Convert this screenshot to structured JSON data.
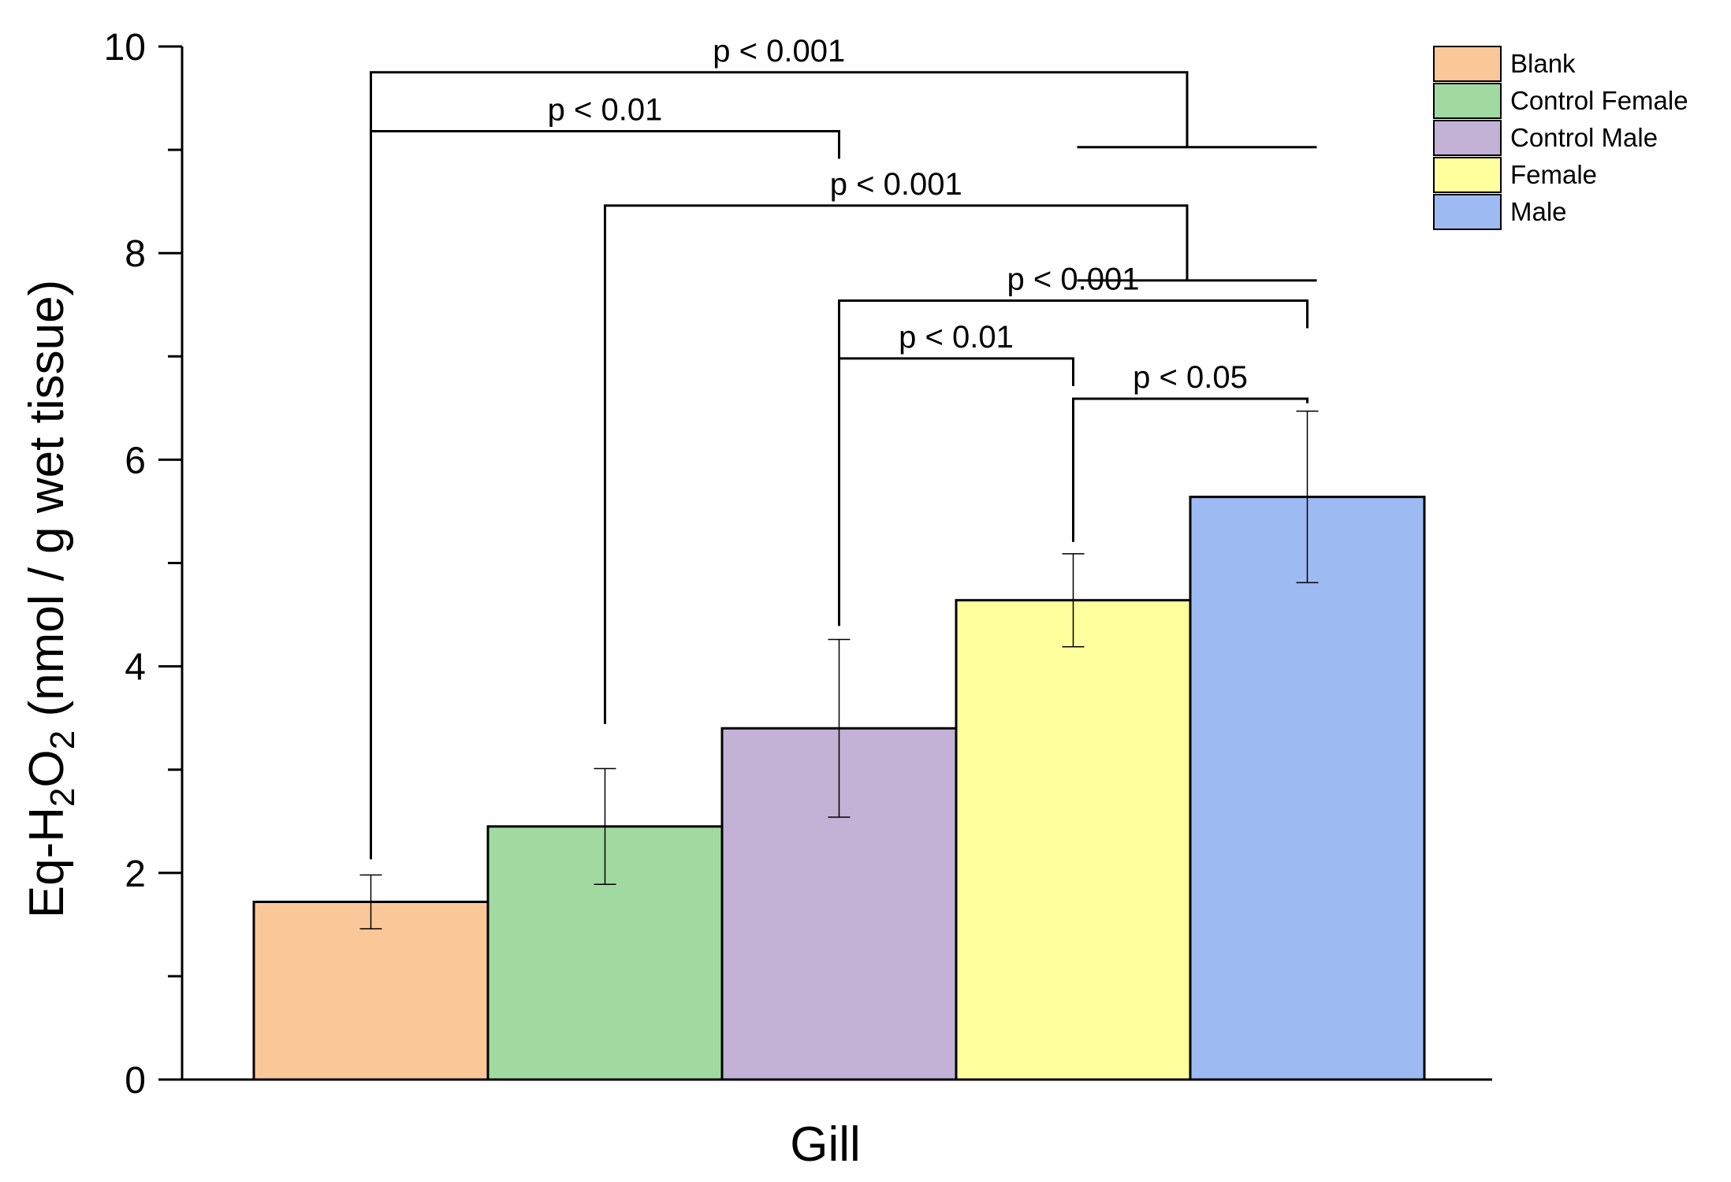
{
  "chart_data": {
    "type": "bar",
    "title": "",
    "xlabel": "Gill",
    "ylabel": {
      "prefix": "Eq-H",
      "sub1": "2",
      "mid": "O",
      "sub2": "2",
      "suffix": " (nmol / g wet tissue)"
    },
    "ylim": [
      0,
      10
    ],
    "yticks": [
      "0",
      "2",
      "4",
      "6",
      "8",
      "10"
    ],
    "legend_position": "top-right",
    "series": [
      {
        "name": "Blank",
        "value": 1.72,
        "error": 0.26,
        "color": "#FAC898"
      },
      {
        "name": "Control Female",
        "value": 2.45,
        "error": 0.56,
        "color": "#A0DAA0"
      },
      {
        "name": "Control Male",
        "value": 3.4,
        "error": 0.86,
        "color": "#C3B1D6"
      },
      {
        "name": "Female",
        "value": 4.64,
        "error": 0.45,
        "color": "#FFFF9E"
      },
      {
        "name": "Male",
        "value": 5.64,
        "error": 0.83,
        "color": "#9DBAF2"
      }
    ],
    "significance": [
      {
        "label": "p < 0.001",
        "from": 0,
        "to_pair": [
          3,
          4
        ],
        "level": 9.75
      },
      {
        "label": "p < 0.01",
        "from": 0,
        "to": 2,
        "level": 9.18
      },
      {
        "label": "p < 0.001",
        "from": 1,
        "to_pair": [
          3,
          4
        ],
        "level": 8.46
      },
      {
        "label": "p < 0.001",
        "from": 2,
        "to": 4,
        "level": 7.54
      },
      {
        "label": "p < 0.01",
        "from": 2,
        "to": 3,
        "level": 6.98
      },
      {
        "label": "p < 0.05",
        "from": 3,
        "to": 4,
        "level": 6.59
      }
    ]
  }
}
